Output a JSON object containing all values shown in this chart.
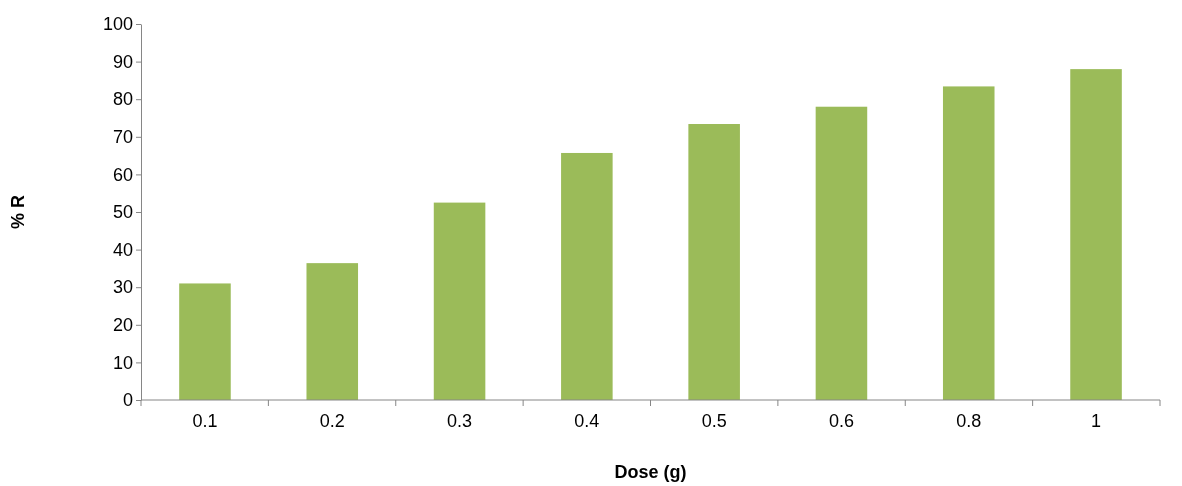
{
  "chart_data": {
    "type": "bar",
    "xlabel": "Dose (g)",
    "ylabel": "% R",
    "categories": [
      "0.1",
      "0.2",
      "0.3",
      "0.4",
      "0.5",
      "0.6",
      "0.8",
      "1"
    ],
    "values": [
      31,
      36.4,
      52.5,
      65.7,
      73.4,
      78,
      83.4,
      88
    ],
    "color": "#9bbb59",
    "ylim": [
      0,
      100
    ],
    "yticks": [
      0,
      10,
      20,
      30,
      40,
      50,
      60,
      70,
      80,
      90,
      100
    ],
    "grid": false
  }
}
